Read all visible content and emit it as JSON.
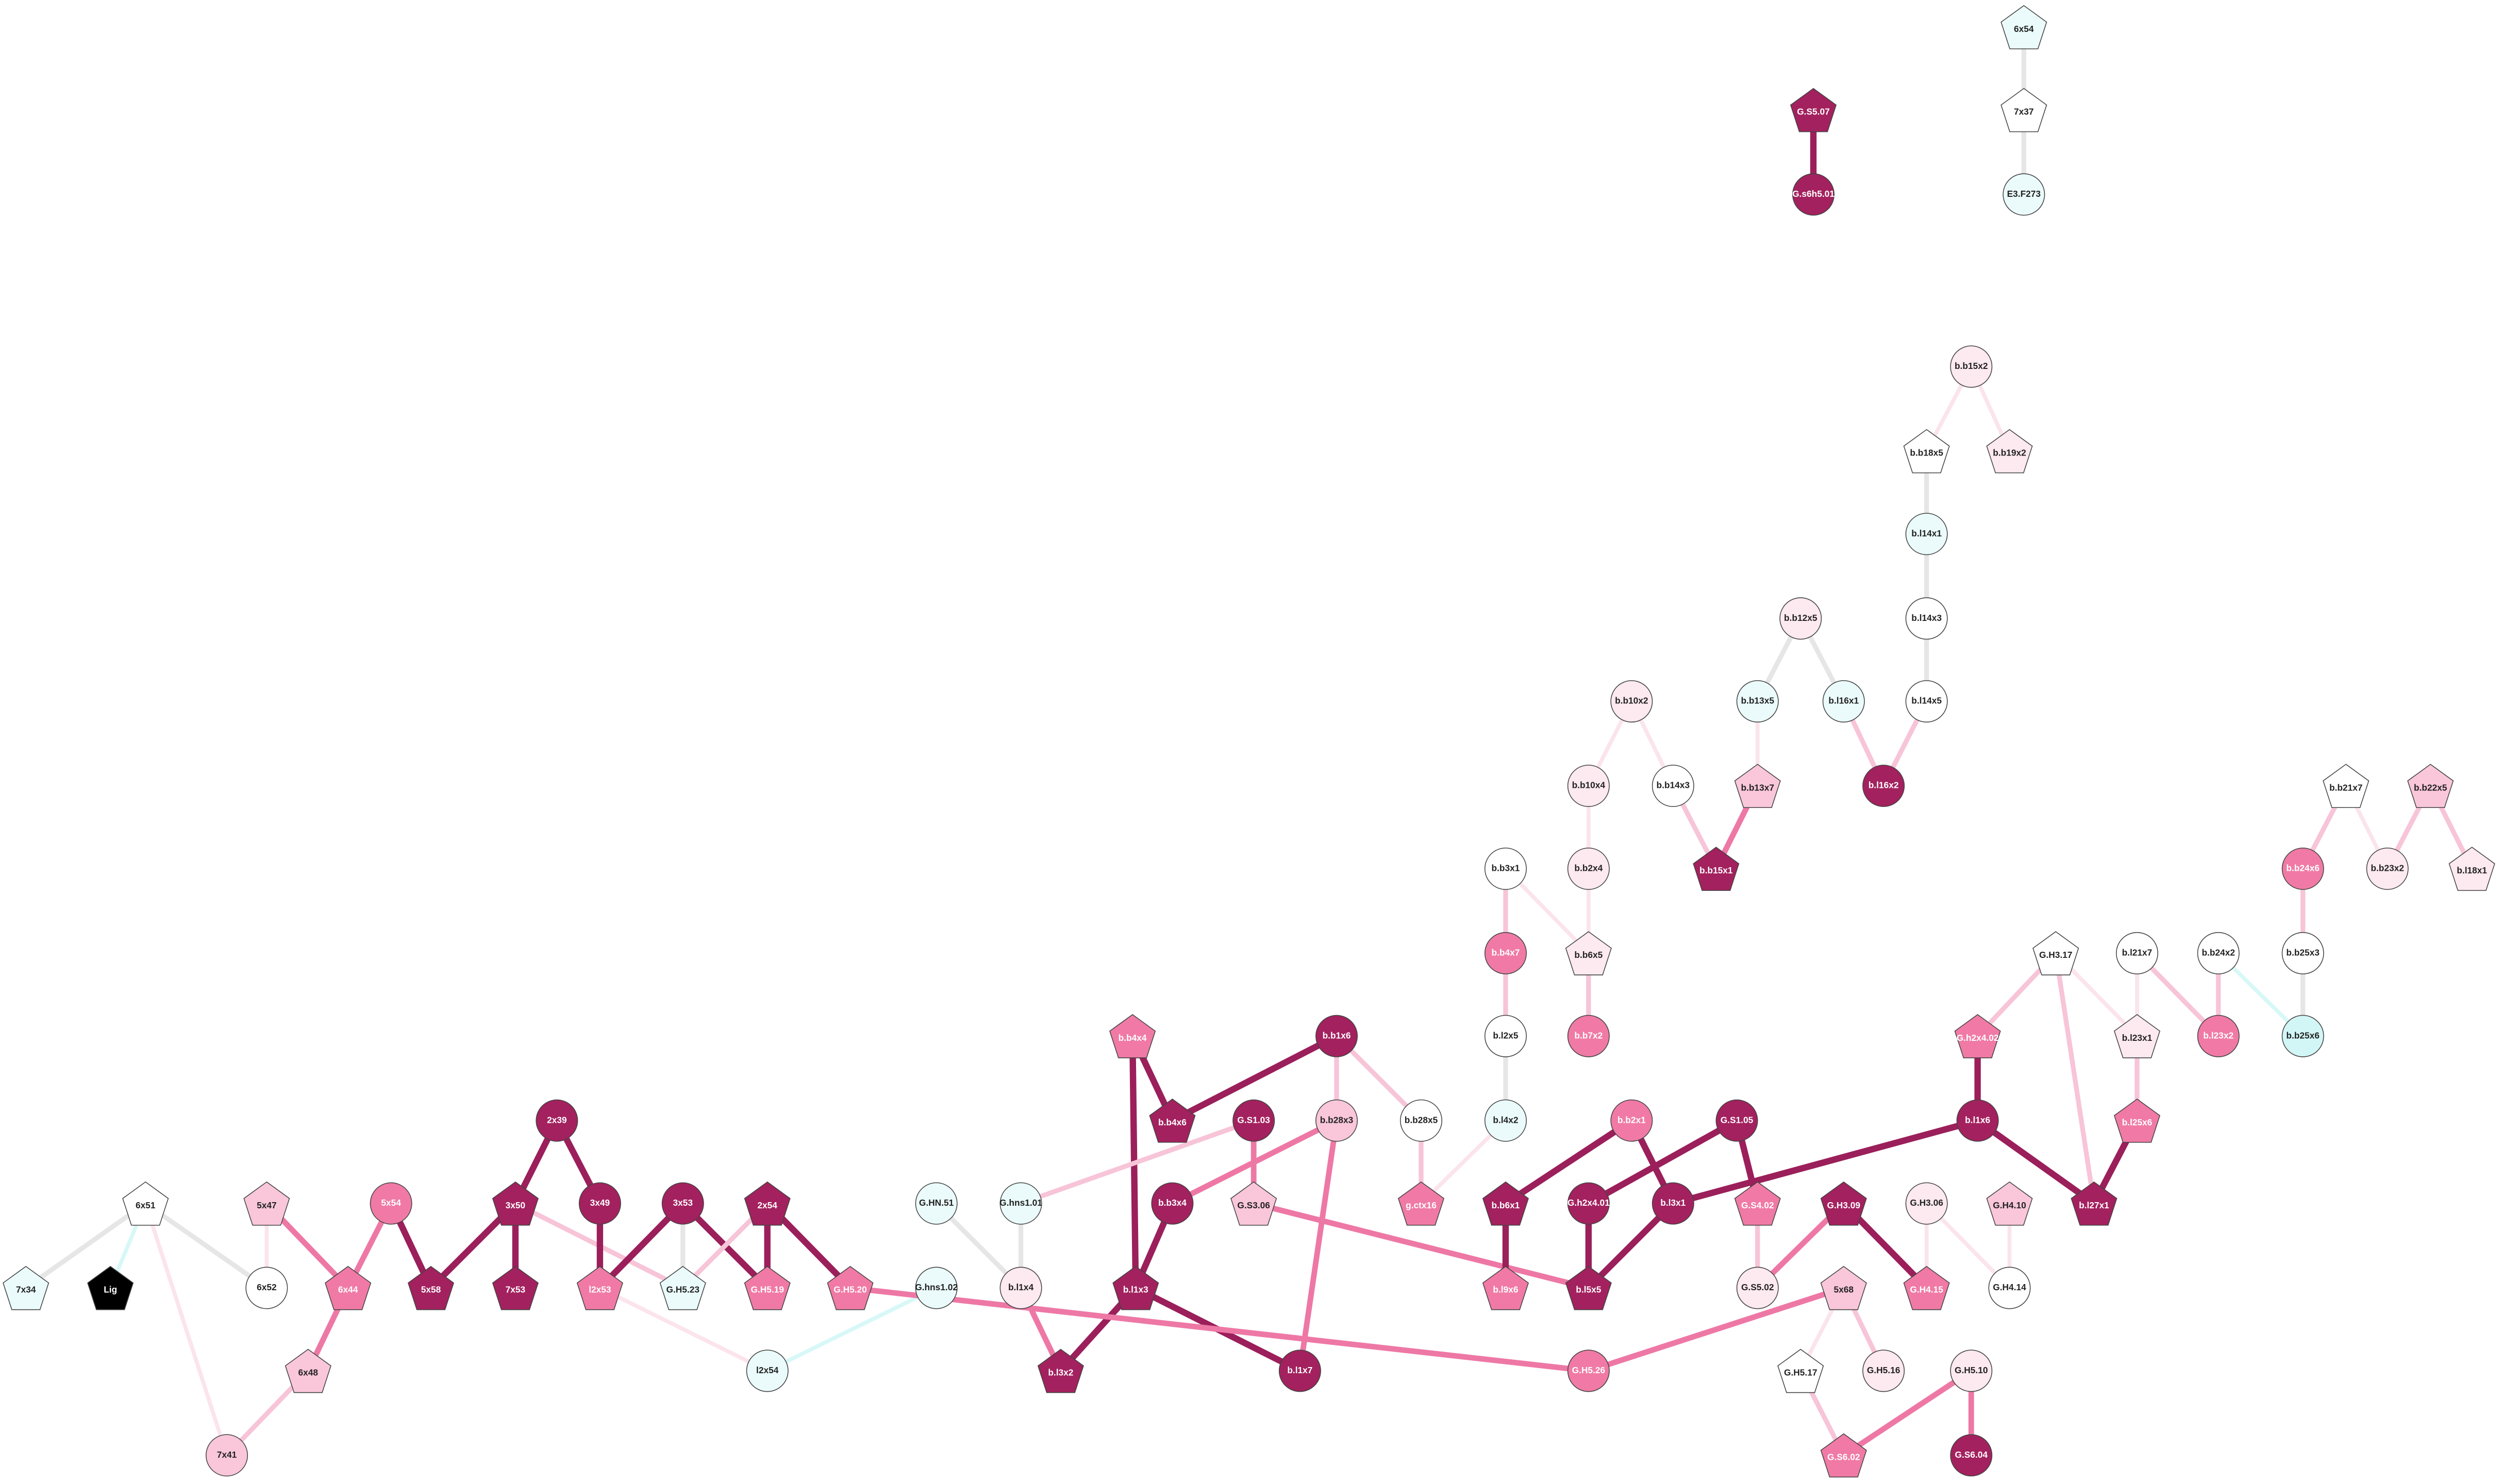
{
  "nodes": [
    {
      "label": "6x54"
    },
    {
      "label": "7x37"
    },
    {
      "label": "E3.F273"
    },
    {
      "label": "G.S5.07"
    },
    {
      "label": "G.s6h5.01"
    },
    {
      "label": "b.b15x2"
    },
    {
      "label": "b.b18x5"
    },
    {
      "label": "b.b19x2"
    },
    {
      "label": "b.l14x1"
    },
    {
      "label": "b.l14x3"
    },
    {
      "label": "b.l14x5"
    },
    {
      "label": "b.l16x2"
    },
    {
      "label": "b.b12x5"
    },
    {
      "label": "b.b13x5"
    },
    {
      "label": "b.l16x1"
    },
    {
      "label": "b.b13x7"
    },
    {
      "label": "b.b15x1"
    },
    {
      "label": "b.b10x2"
    },
    {
      "label": "b.b10x4"
    },
    {
      "label": "b.b14x3"
    },
    {
      "label": "b.b3x1"
    },
    {
      "label": "b.b2x4"
    },
    {
      "label": "b.b4x7"
    },
    {
      "label": "b.b6x5"
    },
    {
      "label": "b.b7x2"
    },
    {
      "label": "b.l2x5"
    },
    {
      "label": "b.l4x2"
    },
    {
      "label": "g.ctx16"
    },
    {
      "label": "b.b28x5"
    },
    {
      "label": "b.b1x6"
    },
    {
      "label": "b.b28x3"
    },
    {
      "label": "b.b4x4"
    },
    {
      "label": "b.b4x6"
    },
    {
      "label": "G.S1.03"
    },
    {
      "label": "G.S3.06"
    },
    {
      "label": "b.b3x4"
    },
    {
      "label": "b.l1x3"
    },
    {
      "label": "b.l3x2"
    },
    {
      "label": "b.l1x7"
    },
    {
      "label": "G.hns1.01"
    },
    {
      "label": "b.l1x4"
    },
    {
      "label": "G.HN.51"
    },
    {
      "label": "G.hns1.02"
    },
    {
      "label": "l2x54"
    },
    {
      "label": "b.b2x1"
    },
    {
      "label": "G.S1.05"
    },
    {
      "label": "b.b6x1"
    },
    {
      "label": "b.l9x6"
    },
    {
      "label": "G.h2x4.01"
    },
    {
      "label": "b.l3x1"
    },
    {
      "label": "G.S4.02"
    },
    {
      "label": "b.l5x5"
    },
    {
      "label": "G.H3.09"
    },
    {
      "label": "G.S5.02"
    },
    {
      "label": "G.H4.15"
    },
    {
      "label": "G.H3.06"
    },
    {
      "label": "G.H4.14"
    },
    {
      "label": "G.H4.10"
    },
    {
      "label": "G.H5.26"
    },
    {
      "label": "5x68"
    },
    {
      "label": "G.H5.17"
    },
    {
      "label": "G.H5.16"
    },
    {
      "label": "G.S6.02"
    },
    {
      "label": "G.H5.10"
    },
    {
      "label": "G.S6.04"
    },
    {
      "label": "G.H3.17"
    },
    {
      "label": "G.h2x4.02"
    },
    {
      "label": "b.l1x6"
    },
    {
      "label": "b.l27x1"
    },
    {
      "label": "b.l21x7"
    },
    {
      "label": "b.l23x1"
    },
    {
      "label": "b.l25x6"
    },
    {
      "label": "b.l23x2"
    },
    {
      "label": "b.b24x2"
    },
    {
      "label": "b.b25x3"
    },
    {
      "label": "b.b25x6"
    },
    {
      "label": "b.b24x6"
    },
    {
      "label": "b.b21x7"
    },
    {
      "label": "b.b23x2"
    },
    {
      "label": "b.b22x5"
    },
    {
      "label": "b.l18x1"
    },
    {
      "label": "6x51"
    },
    {
      "label": "7x34"
    },
    {
      "label": "Lig"
    },
    {
      "label": "6x52"
    },
    {
      "label": "7x41"
    },
    {
      "label": "5x47"
    },
    {
      "label": "5x54"
    },
    {
      "label": "6x44"
    },
    {
      "label": "6x48"
    },
    {
      "label": "2x39"
    },
    {
      "label": "3x50"
    },
    {
      "label": "3x49"
    },
    {
      "label": "5x58"
    },
    {
      "label": "7x53"
    },
    {
      "label": "l2x53"
    },
    {
      "label": "3x53"
    },
    {
      "label": "G.H5.23"
    },
    {
      "label": "2x54"
    },
    {
      "label": "G.H5.19"
    },
    {
      "label": "G.H5.20"
    }
  ]
}
